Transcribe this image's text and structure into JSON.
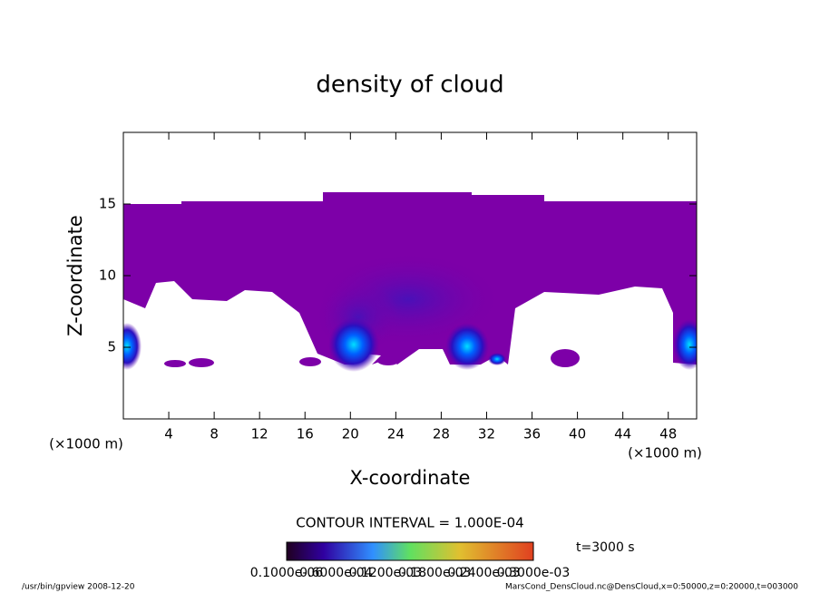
{
  "chart_data": {
    "type": "contour",
    "title": "density of cloud",
    "x_label": "X-coordinate",
    "y_label": "Z-coordinate",
    "x_unit": "(×1000 m)",
    "y_unit": "(×1000 m)",
    "xlim": [
      0,
      50.5
    ],
    "ylim": [
      0,
      20
    ],
    "xticks": [
      4,
      8,
      12,
      16,
      20,
      24,
      28,
      32,
      36,
      40,
      44,
      48
    ],
    "yticks": [
      5,
      10,
      15
    ],
    "contour_interval": "CONTOUR INTERVAL = 1.000E-04",
    "time": "t=3000 s",
    "colorbar_labels": [
      "0.1000e-06",
      "0.6000e-04",
      "0.1200e-03",
      "0.1800e-03",
      "0.2400e-03",
      "0.3000e-03"
    ],
    "footer_left": "/usr/bin/gpview   2008-12-20",
    "footer_right": "MarsCond_DensCloud.nc@DensCloud,x=0:50000,z=0:20000,t=003000"
  }
}
